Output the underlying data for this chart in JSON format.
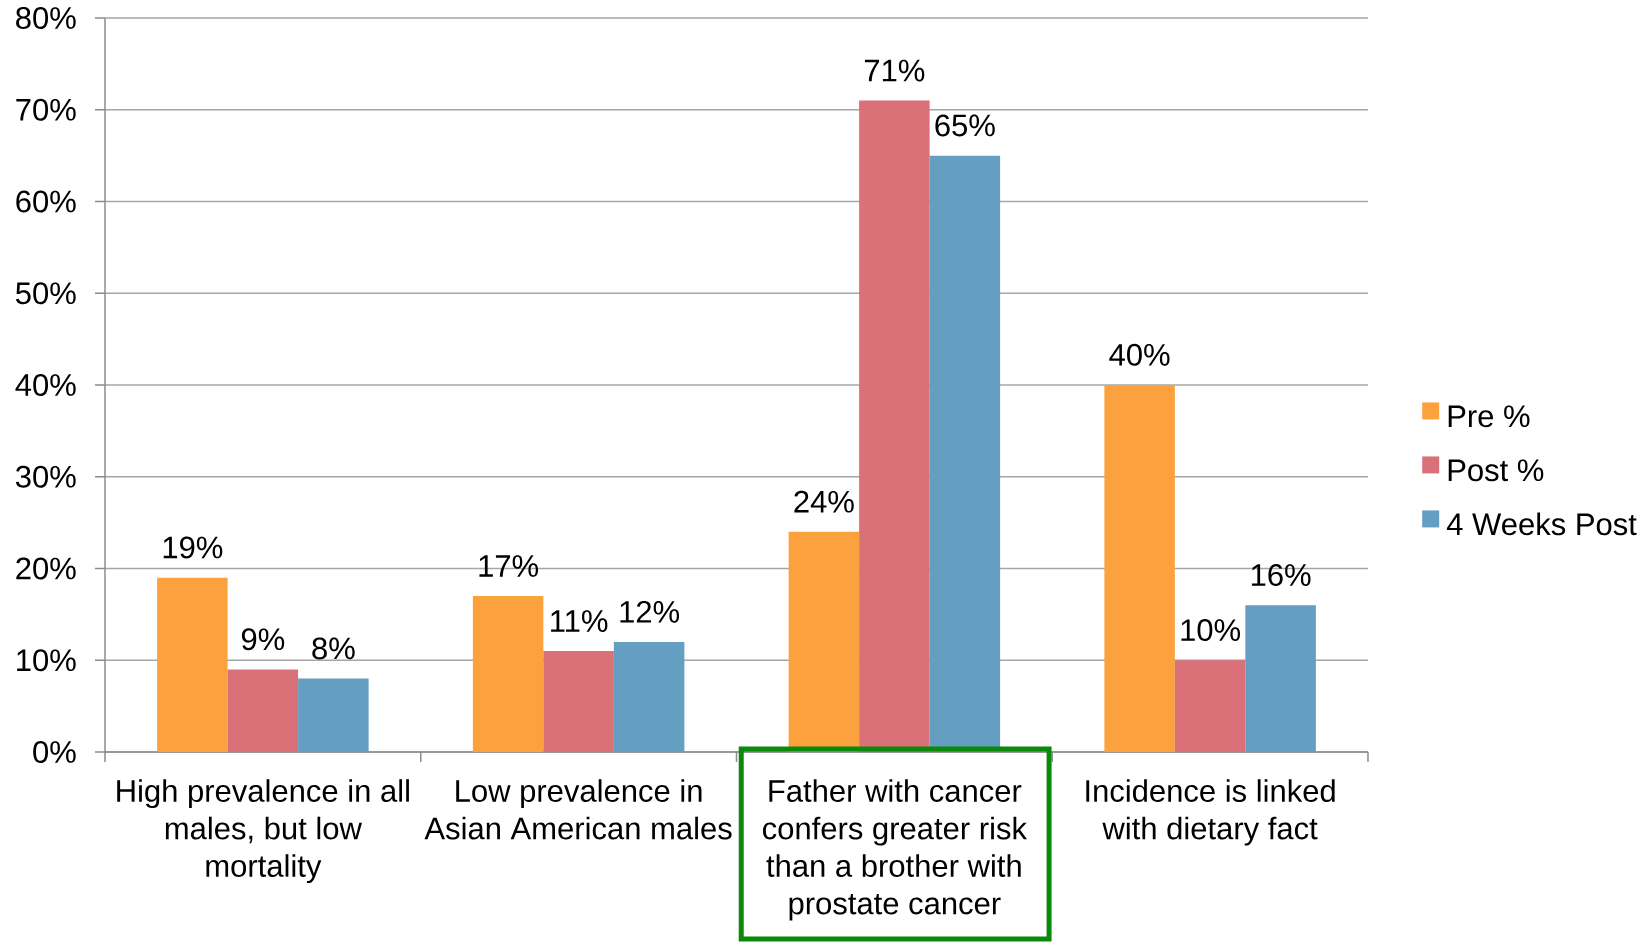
{
  "chart_data": {
    "type": "bar",
    "categories": [
      "High prevalence in all males, but low mortality",
      "Low prevalence in Asian American males",
      "Father with cancer confers greater risk than a brother with prostate cancer",
      "Incidence is linked with dietary fact"
    ],
    "series": [
      {
        "name": "Pre %",
        "color": "#fba23f",
        "values": [
          19,
          17,
          24,
          40
        ],
        "value_labels": [
          "19%",
          "17%",
          "24%",
          "40%"
        ]
      },
      {
        "name": "Post %",
        "color": "#da7078",
        "values": [
          9,
          11,
          71,
          10
        ],
        "value_labels": [
          "9%",
          "11%",
          "71%",
          "10%"
        ]
      },
      {
        "name": "4 Weeks Post",
        "color": "#649ec0",
        "values": [
          8,
          12,
          65,
          16
        ],
        "value_labels": [
          "8%",
          "12%",
          "65%",
          "16%"
        ]
      }
    ],
    "ylim": [
      0,
      80
    ],
    "yticks": [
      {
        "value": 0,
        "label": "0%"
      },
      {
        "value": 10,
        "label": "10%"
      },
      {
        "value": 20,
        "label": "20%"
      },
      {
        "value": 30,
        "label": "30%"
      },
      {
        "value": 40,
        "label": "40%"
      },
      {
        "value": 50,
        "label": "50%"
      },
      {
        "value": 60,
        "label": "60%"
      },
      {
        "value": 70,
        "label": "70%"
      },
      {
        "value": 80,
        "label": "80%"
      }
    ],
    "grid": "y",
    "legend": "right"
  }
}
